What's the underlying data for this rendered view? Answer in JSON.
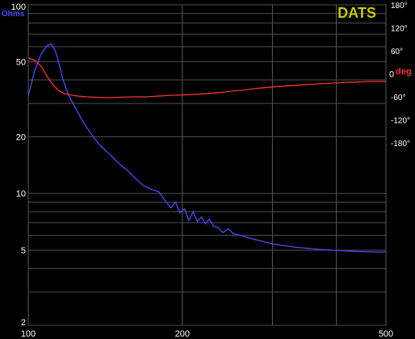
{
  "chart_data": {
    "type": "line",
    "brand": "DATS",
    "x_scale": "log",
    "xlim": [
      100,
      500
    ],
    "x_ticks": [
      {
        "value": 100,
        "label": "100"
      },
      {
        "value": 200,
        "label": "200"
      },
      {
        "value": 500,
        "label": "500"
      }
    ],
    "y_left": {
      "unit_label": "Ohms",
      "scale": "log",
      "lim": [
        2,
        100
      ],
      "ticks": [
        {
          "value": 100,
          "label": "100"
        },
        {
          "value": 50,
          "label": "50"
        },
        {
          "value": 20,
          "label": "20"
        },
        {
          "value": 10,
          "label": "10"
        },
        {
          "value": 5,
          "label": "5"
        },
        {
          "value": 2,
          "label": "2"
        }
      ]
    },
    "y_right": {
      "unit_label": "deg",
      "lim": [
        -180,
        180
      ],
      "ticks": [
        {
          "value": 180,
          "label": "180°"
        },
        {
          "value": 120,
          "label": "120°"
        },
        {
          "value": 60,
          "label": "60°"
        },
        {
          "value": 0,
          "label": "0"
        },
        {
          "value": -60,
          "label": "-60°"
        },
        {
          "value": -120,
          "label": "-120°"
        },
        {
          "value": -180,
          "label": "-180°"
        }
      ]
    },
    "grid": true,
    "series": [
      {
        "axis": "left",
        "color": "#4b4bff",
        "x": [
          100,
          103,
          106,
          109,
          111,
          113,
          115,
          117,
          120,
          124,
          128,
          133,
          138,
          144,
          150,
          156,
          162,
          168,
          174,
          180,
          186,
          190,
          194,
          198,
          202,
          206,
          210,
          214,
          218,
          222,
          226,
          230,
          235,
          240,
          246,
          252,
          260,
          270,
          285,
          300,
          330,
          370,
          420,
          470,
          500
        ],
        "y": [
          33,
          45,
          55,
          61,
          62,
          57,
          48,
          40,
          33,
          28,
          24,
          20.5,
          18,
          16.2,
          14.5,
          13.3,
          12,
          11,
          10.5,
          10.2,
          9,
          8.4,
          9,
          7.9,
          8.3,
          7.2,
          8,
          7.1,
          7.5,
          6.9,
          7.3,
          6.7,
          6.6,
          6.2,
          6.5,
          6.1,
          6,
          5.8,
          5.6,
          5.4,
          5.2,
          5.05,
          4.95,
          4.9,
          4.9
        ]
      },
      {
        "axis": "right",
        "color": "#ff3030",
        "x": [
          100,
          103,
          106,
          109,
          112,
          115,
          118,
          121,
          125,
          130,
          136,
          142,
          150,
          160,
          170,
          180,
          190,
          200,
          210,
          220,
          230,
          240,
          250,
          265,
          280,
          300,
          330,
          370,
          420,
          470,
          500
        ],
        "y": [
          42,
          35,
          20,
          -8,
          -30,
          -45,
          -52,
          -55,
          -58,
          -60,
          -61,
          -62,
          -61,
          -60,
          -60,
          -58,
          -56,
          -55,
          -54,
          -52,
          -50,
          -48,
          -45,
          -42,
          -38,
          -34,
          -30,
          -26,
          -22,
          -20,
          -20
        ]
      }
    ]
  }
}
